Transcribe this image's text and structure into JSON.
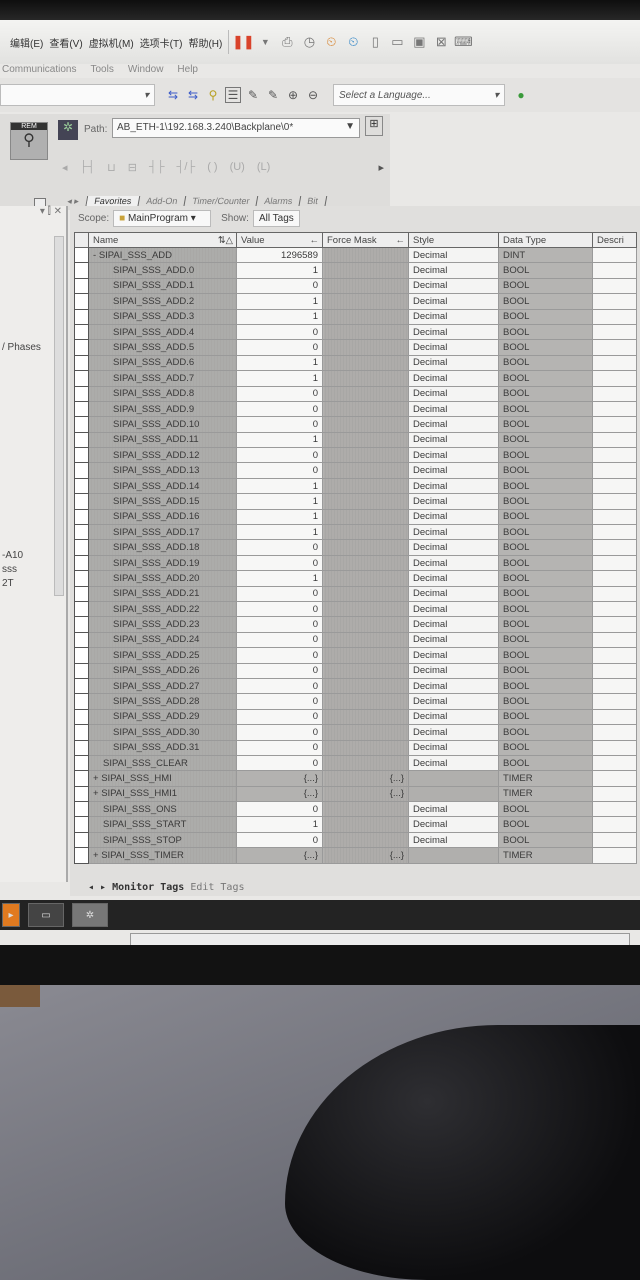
{
  "vm_menu": [
    "编辑(E)",
    "查看(V)",
    "虚拟机(M)",
    "选项卡(T)",
    "帮助(H)"
  ],
  "app_menu": [
    "Communications",
    "Tools",
    "Window",
    "Help"
  ],
  "toolbar": {
    "language_placeholder": "Select a Language..."
  },
  "path": {
    "label": "Path:",
    "value": "AB_ETH-1\\192.168.3.240\\Backplane\\0*"
  },
  "run_label": "REM",
  "palette_tabs": [
    "Favorites",
    "Add-On",
    "Timer/Counter",
    "Alarms",
    "Bit"
  ],
  "left_panel": {
    "items": [
      "/ Phases",
      "-A10",
      "sss",
      "2T"
    ]
  },
  "scope": {
    "label": "Scope:",
    "value": "MainProgram",
    "show_label": "Show:",
    "show_value": "All Tags"
  },
  "columns": [
    "Name",
    "Value",
    "Force Mask",
    "Style",
    "Data Type",
    "Descri"
  ],
  "rows": [
    {
      "name": "SIPAI_SSS_ADD",
      "expand": "-",
      "value": "1296589",
      "force": "",
      "style": "Decimal",
      "type": "DINT",
      "indent": 0
    },
    {
      "name": "SIPAI_SSS_ADD.0",
      "value": "1",
      "force": "",
      "style": "Decimal",
      "type": "BOOL",
      "indent": 1
    },
    {
      "name": "SIPAI_SSS_ADD.1",
      "value": "0",
      "force": "",
      "style": "Decimal",
      "type": "BOOL",
      "indent": 1
    },
    {
      "name": "SIPAI_SSS_ADD.2",
      "value": "1",
      "force": "",
      "style": "Decimal",
      "type": "BOOL",
      "indent": 1
    },
    {
      "name": "SIPAI_SSS_ADD.3",
      "value": "1",
      "force": "",
      "style": "Decimal",
      "type": "BOOL",
      "indent": 1
    },
    {
      "name": "SIPAI_SSS_ADD.4",
      "value": "0",
      "force": "",
      "style": "Decimal",
      "type": "BOOL",
      "indent": 1
    },
    {
      "name": "SIPAI_SSS_ADD.5",
      "value": "0",
      "force": "",
      "style": "Decimal",
      "type": "BOOL",
      "indent": 1
    },
    {
      "name": "SIPAI_SSS_ADD.6",
      "value": "1",
      "force": "",
      "style": "Decimal",
      "type": "BOOL",
      "indent": 1
    },
    {
      "name": "SIPAI_SSS_ADD.7",
      "value": "1",
      "force": "",
      "style": "Decimal",
      "type": "BOOL",
      "indent": 1
    },
    {
      "name": "SIPAI_SSS_ADD.8",
      "value": "0",
      "force": "",
      "style": "Decimal",
      "type": "BOOL",
      "indent": 1
    },
    {
      "name": "SIPAI_SSS_ADD.9",
      "value": "0",
      "force": "",
      "style": "Decimal",
      "type": "BOOL",
      "indent": 1
    },
    {
      "name": "SIPAI_SSS_ADD.10",
      "value": "0",
      "force": "",
      "style": "Decimal",
      "type": "BOOL",
      "indent": 1
    },
    {
      "name": "SIPAI_SSS_ADD.11",
      "value": "1",
      "force": "",
      "style": "Decimal",
      "type": "BOOL",
      "indent": 1
    },
    {
      "name": "SIPAI_SSS_ADD.12",
      "value": "0",
      "force": "",
      "style": "Decimal",
      "type": "BOOL",
      "indent": 1
    },
    {
      "name": "SIPAI_SSS_ADD.13",
      "value": "0",
      "force": "",
      "style": "Decimal",
      "type": "BOOL",
      "indent": 1
    },
    {
      "name": "SIPAI_SSS_ADD.14",
      "value": "1",
      "force": "",
      "style": "Decimal",
      "type": "BOOL",
      "indent": 1
    },
    {
      "name": "SIPAI_SSS_ADD.15",
      "value": "1",
      "force": "",
      "style": "Decimal",
      "type": "BOOL",
      "indent": 1
    },
    {
      "name": "SIPAI_SSS_ADD.16",
      "value": "1",
      "force": "",
      "style": "Decimal",
      "type": "BOOL",
      "indent": 1
    },
    {
      "name": "SIPAI_SSS_ADD.17",
      "value": "1",
      "force": "",
      "style": "Decimal",
      "type": "BOOL",
      "indent": 1
    },
    {
      "name": "SIPAI_SSS_ADD.18",
      "value": "0",
      "force": "",
      "style": "Decimal",
      "type": "BOOL",
      "indent": 1
    },
    {
      "name": "SIPAI_SSS_ADD.19",
      "value": "0",
      "force": "",
      "style": "Decimal",
      "type": "BOOL",
      "indent": 1
    },
    {
      "name": "SIPAI_SSS_ADD.20",
      "value": "1",
      "force": "",
      "style": "Decimal",
      "type": "BOOL",
      "indent": 1
    },
    {
      "name": "SIPAI_SSS_ADD.21",
      "value": "0",
      "force": "",
      "style": "Decimal",
      "type": "BOOL",
      "indent": 1
    },
    {
      "name": "SIPAI_SSS_ADD.22",
      "value": "0",
      "force": "",
      "style": "Decimal",
      "type": "BOOL",
      "indent": 1
    },
    {
      "name": "SIPAI_SSS_ADD.23",
      "value": "0",
      "force": "",
      "style": "Decimal",
      "type": "BOOL",
      "indent": 1
    },
    {
      "name": "SIPAI_SSS_ADD.24",
      "value": "0",
      "force": "",
      "style": "Decimal",
      "type": "BOOL",
      "indent": 1
    },
    {
      "name": "SIPAI_SSS_ADD.25",
      "value": "0",
      "force": "",
      "style": "Decimal",
      "type": "BOOL",
      "indent": 1
    },
    {
      "name": "SIPAI_SSS_ADD.26",
      "value": "0",
      "force": "",
      "style": "Decimal",
      "type": "BOOL",
      "indent": 1
    },
    {
      "name": "SIPAI_SSS_ADD.27",
      "value": "0",
      "force": "",
      "style": "Decimal",
      "type": "BOOL",
      "indent": 1
    },
    {
      "name": "SIPAI_SSS_ADD.28",
      "value": "0",
      "force": "",
      "style": "Decimal",
      "type": "BOOL",
      "indent": 1
    },
    {
      "name": "SIPAI_SSS_ADD.29",
      "value": "0",
      "force": "",
      "style": "Decimal",
      "type": "BOOL",
      "indent": 1
    },
    {
      "name": "SIPAI_SSS_ADD.30",
      "value": "0",
      "force": "",
      "style": "Decimal",
      "type": "BOOL",
      "indent": 1
    },
    {
      "name": "SIPAI_SSS_ADD.31",
      "value": "0",
      "force": "",
      "style": "Decimal",
      "type": "BOOL",
      "indent": 1
    },
    {
      "name": "SIPAI_SSS_CLEAR",
      "value": "0",
      "force": "",
      "style": "Decimal",
      "type": "BOOL",
      "indent": 0
    },
    {
      "name": "SIPAI_SSS_HMI",
      "expand": "+",
      "value": "{...}",
      "force": "{...}",
      "style": "",
      "type": "TIMER",
      "indent": 0
    },
    {
      "name": "SIPAI_SSS_HMI1",
      "expand": "+",
      "value": "{...}",
      "force": "{...}",
      "style": "",
      "type": "TIMER",
      "indent": 0
    },
    {
      "name": "SIPAI_SSS_ONS",
      "value": "0",
      "force": "",
      "style": "Decimal",
      "type": "BOOL",
      "indent": 0
    },
    {
      "name": "SIPAI_SSS_START",
      "value": "1",
      "force": "",
      "style": "Decimal",
      "type": "BOOL",
      "indent": 0
    },
    {
      "name": "SIPAI_SSS_STOP",
      "value": "0",
      "force": "",
      "style": "Decimal",
      "type": "BOOL",
      "indent": 0
    },
    {
      "name": "SIPAI_SSS_TIMER",
      "expand": "+",
      "value": "{...}",
      "force": "{...}",
      "style": "",
      "type": "TIMER",
      "indent": 0
    }
  ],
  "bottom_tabs": [
    "Monitor Tags",
    "Edit Tags"
  ],
  "colors": {
    "pause": "#d9432b",
    "name_cell": "#a9a8a6",
    "grid_border": "#9a9a9a"
  }
}
